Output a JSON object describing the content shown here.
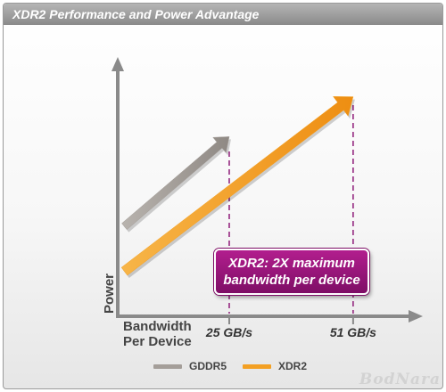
{
  "title": "XDR2 Performance and Power Advantage",
  "callout": {
    "line1": "XDR2: 2X maximum",
    "line2": "bandwidth per device"
  },
  "watermark": "BodNara",
  "colors": {
    "gddr5": "#a49e99",
    "xdr2": "#f3a023",
    "axis": "#8a8a8a",
    "guide": "#8e1a78",
    "callout": "#9c167e"
  },
  "chart_data": {
    "type": "line",
    "title": "XDR2 Performance and Power Advantage",
    "xlabel_lines": [
      "Bandwidth",
      "Per Device"
    ],
    "ylabel": "Power",
    "xticks": [
      {
        "value": 25,
        "label": "25 GB/s"
      },
      {
        "value": 51,
        "label": "51 GB/s"
      }
    ],
    "xlim": [
      -10,
      63
    ],
    "ylim": [
      0,
      100
    ],
    "grid": false,
    "legend_position": "bottom",
    "series": [
      {
        "name": "GDDR5",
        "color": "#a49e99",
        "points": [
          [
            3,
            36
          ],
          [
            25,
            72
          ]
        ]
      },
      {
        "name": "XDR2",
        "color": "#f3a023",
        "points": [
          [
            3,
            18
          ],
          [
            51,
            88
          ]
        ]
      }
    ]
  }
}
